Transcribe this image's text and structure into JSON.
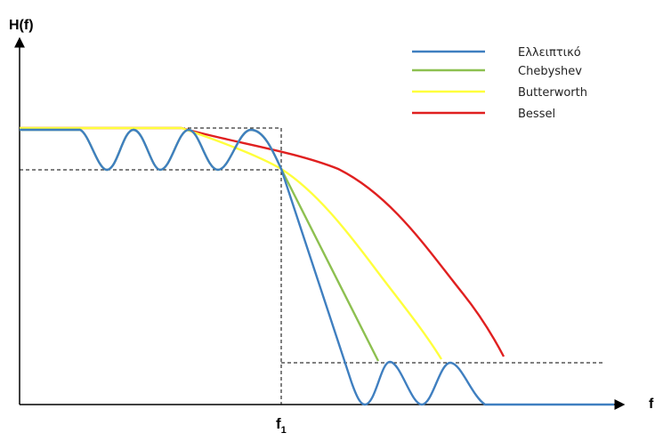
{
  "chart_data": {
    "type": "line",
    "ylabel": "H(f)",
    "xlabel": "f",
    "cutoff_label_main": "f",
    "cutoff_label_sub": "1",
    "series": [
      {
        "name": "Ελλειπτικό",
        "color": "#3f7fc0",
        "x": [
          0.0,
          0.07,
          0.12,
          0.17,
          0.22,
          0.27,
          0.32,
          0.37,
          0.42,
          0.47,
          0.52,
          0.57,
          0.61,
          0.66,
          0.69,
          0.73,
          0.77,
          0.8,
          0.84,
          0.87,
          0.9,
          1.0
        ],
        "y": [
          0.875,
          0.875,
          0.735,
          0.875,
          0.735,
          0.875,
          0.735,
          0.875,
          0.735,
          0.5,
          0.25,
          0.0,
          0.13,
          0.0,
          0.13,
          0.0,
          0.13,
          0.0,
          0.13,
          0.0,
          0.0,
          0.0
        ]
      },
      {
        "name": "Chebyshev",
        "color": "#8dc050",
        "x": [
          0.0,
          0.07,
          0.12,
          0.17,
          0.22,
          0.27,
          0.32,
          0.37,
          0.42,
          0.47,
          0.52,
          0.57,
          0.61,
          0.66,
          0.72
        ],
        "y": [
          0.875,
          0.875,
          0.735,
          0.875,
          0.735,
          0.875,
          0.735,
          0.875,
          0.735,
          0.6,
          0.45,
          0.3,
          0.14,
          0.0,
          0.0
        ]
      },
      {
        "name": "Butterworth",
        "color": "#ffff3c",
        "x": [
          0.0,
          0.17,
          0.27,
          0.37,
          0.47,
          0.57,
          0.67,
          0.77,
          0.84
        ],
        "y": [
          0.875,
          0.875,
          0.86,
          0.82,
          0.75,
          0.62,
          0.45,
          0.24,
          0.13
        ]
      },
      {
        "name": "Bessel",
        "color": "#e02020",
        "x": [
          0.0,
          0.17,
          0.27,
          0.37,
          0.47,
          0.57,
          0.67,
          0.77,
          0.87,
          0.95
        ],
        "y": [
          0.875,
          0.875,
          0.86,
          0.83,
          0.78,
          0.72,
          0.63,
          0.49,
          0.3,
          0.13
        ]
      }
    ]
  }
}
